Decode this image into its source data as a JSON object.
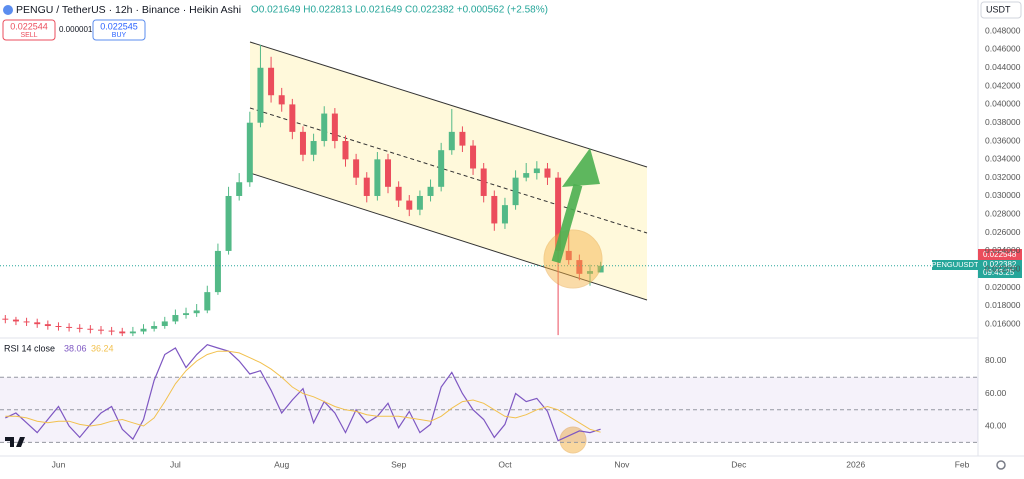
{
  "header": {
    "symbol_title": "PENGU / TetherUS · 12h · Binance · Heikin Ashi",
    "ohlc": "O0.021649 H0.022813 L0.021649 C0.022382 +0.000562 (+2.58%)",
    "sell_price": "0.022544",
    "sell_label": "SELL",
    "spread": "0.000001",
    "buy_price": "0.022545",
    "buy_label": "BUY",
    "currency": "USDT",
    "symbol": "PENGUUSDT",
    "ask": "0.022548",
    "last": "0.022382",
    "countdown": "09:43:25"
  },
  "chart_data": [
    {
      "type": "candlestick",
      "up_color": "#53b987",
      "down_color": "#eb4d5c",
      "categories": [
        null,
        null,
        null,
        null,
        null,
        "Jun",
        null,
        null,
        null,
        null,
        null,
        null,
        null,
        null,
        null,
        null,
        "Jul",
        null,
        null,
        null,
        null,
        null,
        null,
        null,
        null,
        null,
        "Aug",
        null,
        null,
        null,
        null,
        null,
        null,
        null,
        null,
        null,
        null,
        "Sep",
        null,
        null,
        null,
        null,
        null,
        null,
        null,
        null,
        null,
        "Oct",
        null,
        null,
        null,
        null,
        null,
        null,
        null,
        null,
        null,
        null,
        "Nov",
        null,
        null,
        null,
        null,
        null,
        null,
        null,
        null,
        null,
        null,
        "Dec",
        null,
        null,
        null,
        null,
        null,
        null,
        null,
        null,
        null,
        null,
        "2026",
        null,
        null,
        null,
        null,
        null,
        null,
        null,
        null,
        null,
        "Feb",
        null
      ],
      "open": [
        0.0166,
        0.0165,
        0.0163,
        0.0162,
        0.016,
        0.0158,
        0.0157,
        0.0156,
        0.0155,
        0.0154,
        0.0153,
        0.0152,
        0.015,
        0.0152,
        0.0155,
        0.0158,
        0.0163,
        0.017,
        0.0172,
        0.0175,
        0.0195,
        0.024,
        0.03,
        0.0315,
        0.038,
        0.044,
        0.041,
        0.04,
        0.037,
        0.0345,
        0.036,
        0.039,
        0.036,
        0.034,
        0.032,
        0.03,
        0.034,
        0.031,
        0.0295,
        0.0285,
        0.03,
        0.031,
        0.035,
        0.037,
        0.0355,
        0.033,
        0.03,
        0.027,
        0.029,
        0.032,
        0.0325,
        0.033,
        0.032,
        0.024,
        0.023,
        0.0215,
        0.021649,
        null,
        null,
        null,
        null,
        null,
        null,
        null,
        null,
        null,
        null,
        null,
        null,
        null,
        null,
        null,
        null,
        null,
        null,
        null,
        null,
        null,
        null,
        null,
        null,
        null,
        null,
        null,
        null,
        null,
        null,
        null,
        null,
        null,
        null,
        null
      ],
      "high": [
        0.017,
        0.0168,
        0.0167,
        0.0166,
        0.0164,
        0.0162,
        0.0161,
        0.016,
        0.0159,
        0.0158,
        0.0157,
        0.0156,
        0.0157,
        0.016,
        0.0163,
        0.0168,
        0.0176,
        0.0178,
        0.0182,
        0.0202,
        0.0248,
        0.031,
        0.0325,
        0.0392,
        0.0465,
        0.0452,
        0.0418,
        0.0406,
        0.0376,
        0.0368,
        0.0398,
        0.0396,
        0.0366,
        0.0346,
        0.0326,
        0.0348,
        0.0346,
        0.0316,
        0.0301,
        0.0306,
        0.0318,
        0.0358,
        0.0395,
        0.0376,
        0.0361,
        0.0336,
        0.0306,
        0.0298,
        0.0328,
        0.0336,
        0.0338,
        0.0336,
        0.0326,
        0.0262,
        0.0236,
        0.0225,
        0.022813,
        null,
        null,
        null,
        null,
        null,
        null,
        null,
        null,
        null,
        null,
        null,
        null,
        null,
        null,
        null,
        null,
        null,
        null,
        null,
        null,
        null,
        null,
        null,
        null,
        null,
        null,
        null,
        null,
        null,
        null,
        null,
        null,
        null,
        null,
        null
      ],
      "low": [
        0.0161,
        0.0159,
        0.0158,
        0.0156,
        0.0154,
        0.0153,
        0.0152,
        0.0151,
        0.015,
        0.0149,
        0.0148,
        0.0147,
        0.0147,
        0.0149,
        0.0152,
        0.0155,
        0.016,
        0.0166,
        0.0168,
        0.0172,
        0.0192,
        0.0236,
        0.0295,
        0.031,
        0.0375,
        0.0402,
        0.0392,
        0.0362,
        0.0338,
        0.0338,
        0.0354,
        0.0352,
        0.0332,
        0.0312,
        0.0293,
        0.0295,
        0.0303,
        0.0288,
        0.0278,
        0.0279,
        0.0294,
        0.0305,
        0.0345,
        0.0348,
        0.0323,
        0.0293,
        0.0262,
        0.0264,
        0.0285,
        0.0316,
        0.0318,
        0.0312,
        0.0148,
        0.0225,
        0.0208,
        0.0202,
        0.021649,
        null,
        null,
        null,
        null,
        null,
        null,
        null,
        null,
        null,
        null,
        null,
        null,
        null,
        null,
        null,
        null,
        null,
        null,
        null,
        null,
        null,
        null,
        null,
        null,
        null,
        null,
        null,
        null,
        null,
        null,
        null,
        null,
        null,
        null,
        null
      ],
      "close": [
        0.0165,
        0.0163,
        0.0162,
        0.016,
        0.0158,
        0.0157,
        0.0156,
        0.0155,
        0.0154,
        0.0153,
        0.0152,
        0.015,
        0.0152,
        0.0155,
        0.0158,
        0.0163,
        0.017,
        0.0172,
        0.0175,
        0.0195,
        0.024,
        0.03,
        0.0315,
        0.038,
        0.044,
        0.041,
        0.04,
        0.037,
        0.0345,
        0.036,
        0.039,
        0.036,
        0.034,
        0.032,
        0.03,
        0.034,
        0.031,
        0.0295,
        0.0285,
        0.03,
        0.031,
        0.035,
        0.037,
        0.0355,
        0.033,
        0.03,
        0.027,
        0.029,
        0.032,
        0.0325,
        0.033,
        0.032,
        0.024,
        0.023,
        0.0215,
        0.0218,
        0.022382,
        null,
        null,
        null,
        null,
        null,
        null,
        null,
        null,
        null,
        null,
        null,
        null,
        null,
        null,
        null,
        null,
        null,
        null,
        null,
        null,
        null,
        null,
        null,
        null,
        null,
        null,
        null,
        null,
        null,
        null,
        null,
        null,
        null,
        null,
        null
      ],
      "ylim": [
        0.0146,
        0.0514
      ],
      "yticks": [
        {
          "value": 0.016,
          "label": "0.016000"
        },
        {
          "value": 0.018,
          "label": "0.018000"
        },
        {
          "value": 0.02,
          "label": "0.020000"
        },
        {
          "value": 0.022,
          "label": "0.022000"
        },
        {
          "value": 0.024,
          "label": "0.024000"
        },
        {
          "value": 0.026,
          "label": "0.026000"
        },
        {
          "value": 0.028,
          "label": "0.028000"
        },
        {
          "value": 0.03,
          "label": "0.030000"
        },
        {
          "value": 0.032,
          "label": "0.032000"
        },
        {
          "value": 0.034,
          "label": "0.034000"
        },
        {
          "value": 0.036,
          "label": "0.036000"
        },
        {
          "value": 0.038,
          "label": "0.038000"
        },
        {
          "value": 0.04,
          "label": "0.040000"
        },
        {
          "value": 0.042,
          "label": "0.042000"
        },
        {
          "value": 0.044,
          "label": "0.044000"
        },
        {
          "value": 0.046,
          "label": "0.046000"
        },
        {
          "value": 0.048,
          "label": "0.048000"
        }
      ]
    },
    {
      "type": "line",
      "title": "RSI 14 close",
      "series": [
        {
          "color": "#7e57c2",
          "values": [
            45,
            48,
            42,
            36,
            44,
            52,
            40,
            33,
            41,
            48,
            52,
            38,
            32,
            44,
            68,
            84,
            88,
            76,
            84,
            90,
            88,
            86,
            80,
            72,
            74,
            62,
            48,
            56,
            63,
            42,
            55,
            48,
            36,
            50,
            42,
            46,
            54,
            39,
            49,
            36,
            41,
            64,
            73,
            60,
            50,
            44,
            33,
            41,
            60,
            55,
            57,
            49,
            31,
            34,
            37,
            36,
            38.06,
            null,
            null,
            null,
            null,
            null,
            null,
            null,
            null,
            null,
            null,
            null,
            null,
            null,
            null,
            null,
            null,
            null,
            null,
            null,
            null,
            null,
            null,
            null,
            null,
            null,
            null,
            null,
            null,
            null,
            null,
            null,
            null,
            null,
            null,
            null
          ]
        },
        {
          "color": "#f2c14e",
          "values": [
            46,
            46,
            45,
            43,
            42,
            43,
            43,
            41,
            40,
            41,
            43,
            44,
            42,
            40,
            45,
            55,
            66,
            74,
            80,
            84,
            86,
            86,
            85,
            82,
            79,
            75,
            70,
            64,
            60,
            58,
            55,
            52,
            50,
            49,
            47,
            46,
            46,
            46,
            45,
            44,
            43,
            46,
            51,
            55,
            56,
            54,
            50,
            46,
            45,
            47,
            50,
            52,
            50,
            46,
            42,
            38,
            36.24,
            null,
            null,
            null,
            null,
            null,
            null,
            null,
            null,
            null,
            null,
            null,
            null,
            null,
            null,
            null,
            null,
            null,
            null,
            null,
            null,
            null,
            null,
            null,
            null,
            null,
            null,
            null,
            null,
            null,
            null,
            null,
            null,
            null,
            null,
            null
          ]
        }
      ],
      "bands": [
        30,
        50,
        70
      ],
      "ylim": [
        22.2,
        92.9
      ],
      "yticks": [
        {
          "value": 40,
          "label": "40.00"
        },
        {
          "value": 60,
          "label": "60.00"
        },
        {
          "value": 80,
          "label": "80.00"
        }
      ]
    }
  ]
}
